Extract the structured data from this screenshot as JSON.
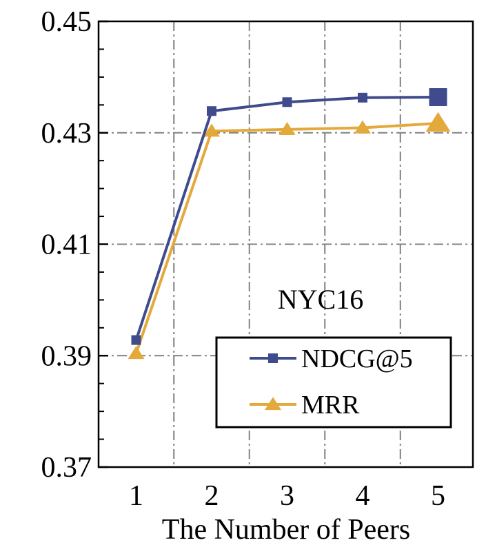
{
  "chart_data": {
    "type": "line",
    "xlabel": "The Number of Peers",
    "ylabel": "",
    "x": [
      1,
      2,
      3,
      4,
      5
    ],
    "ylim": [
      0.37,
      0.45
    ],
    "yticks": [
      "0.37",
      "0.39",
      "0.41",
      "0.43",
      "0.45"
    ],
    "xticks": [
      "1",
      "2",
      "3",
      "4",
      "5"
    ],
    "annotation": "NYC16",
    "grid": true,
    "legend_position": "bottom-right",
    "series": [
      {
        "name": "NDCG@5",
        "values": [
          0.3928,
          0.4339,
          0.4355,
          0.4363,
          0.4364
        ],
        "color": "#3f4b8c",
        "marker": "square"
      },
      {
        "name": "MRR",
        "values": [
          0.3904,
          0.4303,
          0.4306,
          0.4309,
          0.4317
        ],
        "color": "#e3a93b",
        "marker": "triangle"
      }
    ]
  }
}
